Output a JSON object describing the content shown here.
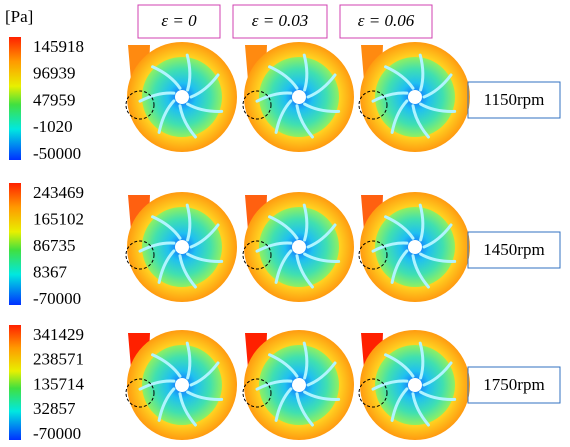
{
  "unit": "[Pa]",
  "columns": [
    "ε = 0",
    "ε = 0.03",
    "ε = 0.06"
  ],
  "rows": [
    {
      "label": "1150rpm",
      "scale": [
        "145918",
        "96939",
        "47959",
        "-1020",
        "-50000"
      ]
    },
    {
      "label": "1450rpm",
      "scale": [
        "243469",
        "165102",
        "86735",
        "8367",
        "-70000"
      ]
    },
    {
      "label": "1750rpm",
      "scale": [
        "341429",
        "238571",
        "135714",
        "32857",
        "-70000"
      ]
    }
  ]
}
